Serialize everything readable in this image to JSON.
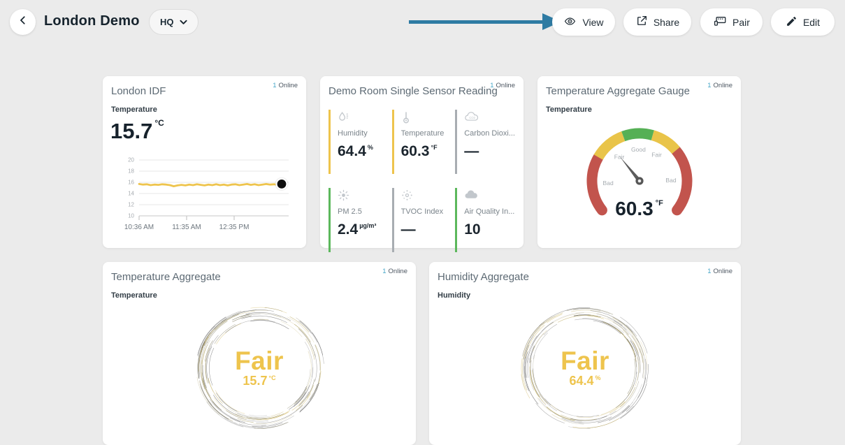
{
  "header": {
    "title": "London Demo",
    "org": "HQ",
    "buttons": [
      {
        "label": "View",
        "icon": "eye"
      },
      {
        "label": "Share",
        "icon": "share"
      },
      {
        "label": "Pair",
        "icon": "pair"
      },
      {
        "label": "Edit",
        "icon": "edit"
      }
    ]
  },
  "colors": {
    "annotation_arrow": "#2e7ba3",
    "online_count": "#45a5c7",
    "status_yellow": "#eec44d",
    "status_green": "#5cb85c",
    "status_gray": "#a8adb2",
    "gauge_red": "#c2544d",
    "gauge_yellow": "#e9c449",
    "gauge_green": "#55b055",
    "marker_black": "#0d0d0d"
  },
  "cards": {
    "london_idf": {
      "title": "London IDF",
      "online_count": "1",
      "online_label": "Online",
      "metric": "Temperature",
      "value": "15.7",
      "unit": "°C"
    },
    "sensor_reading": {
      "title": "Demo Room Single Sensor Reading",
      "online_count": "1",
      "online_label": "Online",
      "tiles": [
        {
          "name": "Humidity",
          "value": "64.4",
          "unit": "%",
          "status_color": "#eec44d",
          "icon": "humidity"
        },
        {
          "name": "Temperature",
          "value": "60.3",
          "unit": "°F",
          "status_color": "#eec44d",
          "icon": "thermometer"
        },
        {
          "name": "Carbon Dioxi...",
          "value": "—",
          "unit": "",
          "status_color": "#a8adb2",
          "icon": "co2"
        },
        {
          "name": "PM 2.5",
          "value": "2.4",
          "unit": "µg/m³",
          "status_color": "#5cb85c",
          "icon": "pm25"
        },
        {
          "name": "TVOC Index",
          "value": "—",
          "unit": "",
          "status_color": "#a8adb2",
          "icon": "tvoc"
        },
        {
          "name": "Air Quality In...",
          "value": "10",
          "unit": "",
          "status_color": "#5cb85c",
          "icon": "aqi"
        }
      ]
    },
    "gauge_card": {
      "title": "Temperature Aggregate Gauge",
      "online_count": "1",
      "online_label": "Online",
      "metric": "Temperature",
      "value": "60.3",
      "unit": "°F"
    },
    "temp_agg": {
      "title": "Temperature Aggregate",
      "online_count": "1",
      "online_label": "Online",
      "metric": "Temperature",
      "status": "Fair",
      "value": "15.7",
      "unit": "°C"
    },
    "hum_agg": {
      "title": "Humidity Aggregate",
      "online_count": "1",
      "online_label": "Online",
      "metric": "Humidity",
      "status": "Fair",
      "value": "64.4",
      "unit": "%"
    }
  },
  "chart_data": [
    {
      "type": "line",
      "title": "London IDF — Temperature (°C)",
      "x_ticks": [
        "10:36 AM",
        "11:35 AM",
        "12:35 PM"
      ],
      "y_ticks": [
        20,
        18,
        16,
        14,
        12,
        10
      ],
      "ylim": [
        10,
        20
      ],
      "grid": true,
      "end_marker": true,
      "series": [
        {
          "name": "Temperature",
          "color": "#eec44d",
          "values": [
            15.7,
            15.6,
            15.65,
            15.5,
            15.6,
            15.55,
            15.65,
            15.6,
            15.5,
            15.3,
            15.45,
            15.55,
            15.45,
            15.6,
            15.5,
            15.65,
            15.55,
            15.45,
            15.6,
            15.5,
            15.65,
            15.5,
            15.6,
            15.45,
            15.6,
            15.65,
            15.5,
            15.6,
            15.7,
            15.55,
            15.65,
            15.5,
            15.6,
            15.7,
            15.6,
            15.65,
            15.55,
            15.7
          ]
        }
      ]
    },
    {
      "type": "gauge",
      "title": "Temperature Aggregate Gauge",
      "value": 60.3,
      "unit": "°F",
      "needle_angle_deg": -39,
      "segments": [
        {
          "label": "Bad",
          "color": "#c2544d",
          "from": -128,
          "to": -60
        },
        {
          "label": "Fair",
          "color": "#e9c449",
          "from": -60,
          "to": -20
        },
        {
          "label": "Good",
          "color": "#55b055",
          "from": -20,
          "to": 16
        },
        {
          "label": "Fair",
          "color": "#e9c449",
          "from": 16,
          "to": 50
        },
        {
          "label": "Bad",
          "color": "#c2544d",
          "from": 50,
          "to": 128
        }
      ]
    }
  ]
}
